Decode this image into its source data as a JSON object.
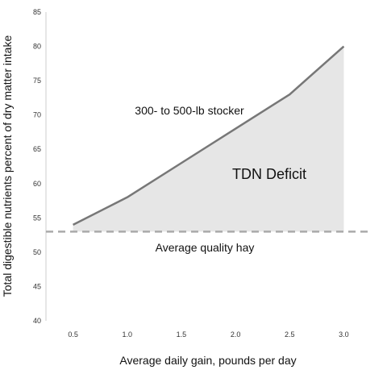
{
  "chart_data": {
    "type": "line",
    "title": "",
    "xlabel": "Average daily gain, pounds per day",
    "ylabel": "Total digestible nutrients percent of dry matter intake",
    "xlim": [
      0.25,
      3.25
    ],
    "ylim": [
      40,
      85
    ],
    "x_ticks": [
      0.5,
      1.0,
      1.5,
      2.0,
      2.5,
      3.0
    ],
    "x_tick_labels": [
      "0.5",
      "1.0",
      "1.5",
      "2.0",
      "2.5",
      "3.0"
    ],
    "y_ticks": [
      40,
      45,
      50,
      55,
      60,
      65,
      70,
      75,
      80,
      85
    ],
    "y_tick_labels": [
      "40",
      "45",
      "50",
      "55",
      "60",
      "65",
      "70",
      "75",
      "80",
      "85"
    ],
    "grid": false,
    "legend": "none",
    "series": [
      {
        "name": "300- to 500-lb stocker",
        "x": [
          0.5,
          1.0,
          1.5,
          2.0,
          2.5,
          3.0
        ],
        "y": [
          54,
          58,
          63,
          68,
          73,
          80
        ],
        "color": "#777777"
      }
    ],
    "reference_lines": [
      {
        "label": "Average quality hay",
        "y": 53,
        "style": "dashed",
        "color": "#aaaaaa"
      }
    ],
    "area": {
      "label": "TDN Deficit",
      "fill": "#e6e6e6",
      "between": [
        "300- to 500-lb stocker",
        "Average quality hay"
      ]
    },
    "annotations": {
      "series_label": "300- to 500-lb stocker",
      "area_label": "TDN Deficit",
      "reference_label": "Average quality hay"
    }
  }
}
